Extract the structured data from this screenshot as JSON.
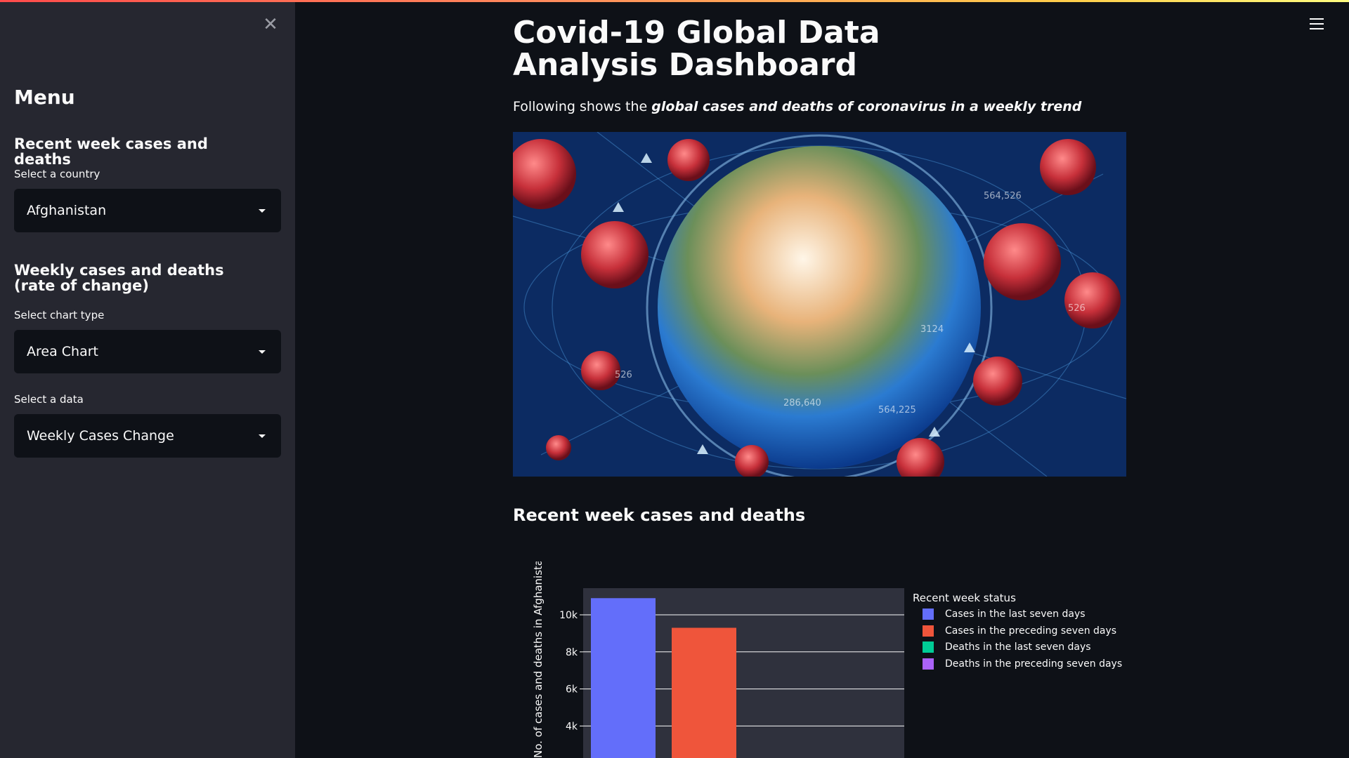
{
  "sidebar": {
    "menu_title": "Menu",
    "section1_heading": "Recent week cases and deaths",
    "country_label": "Select a country",
    "country_value": "Afghanistan",
    "section2_heading": "Weekly cases and deaths (rate of change)",
    "chart_type_label": "Select chart type",
    "chart_type_value": "Area Chart",
    "data_label": "Select a data",
    "data_value": "Weekly Cases Change"
  },
  "main": {
    "title": "Covid-19 Global Data Analysis Dashboard",
    "subtitle_prefix": "Following shows the ",
    "subtitle_emphasis": "global cases and deaths of coronavirus in a weekly trend",
    "section_heading": "Recent week cases and deaths",
    "hero_labels": [
      "564,526",
      "526",
      "526",
      "286,640",
      "564,225",
      "3124"
    ]
  },
  "colors": {
    "sidebar_bg": "#262730",
    "main_bg": "#0e1117",
    "plot_bg": "#2f313d",
    "series": [
      "#636efa",
      "#ef553b",
      "#00cc96",
      "#ab63fa"
    ]
  },
  "chart_data": {
    "type": "bar",
    "ylabel": "No. of cases and deaths in Afghanistan",
    "yticks": [
      "4k",
      "6k",
      "8k",
      "10k"
    ],
    "legend_title": "Recent week status",
    "legend_position": "right",
    "grid": true,
    "series": [
      {
        "name": "Cases in the last seven days",
        "value": 10900
      },
      {
        "name": "Cases in the preceding seven days",
        "value": 9300
      },
      {
        "name": "Deaths in the last seven days",
        "value": null
      },
      {
        "name": "Deaths in the preceding seven days",
        "value": null
      }
    ]
  }
}
